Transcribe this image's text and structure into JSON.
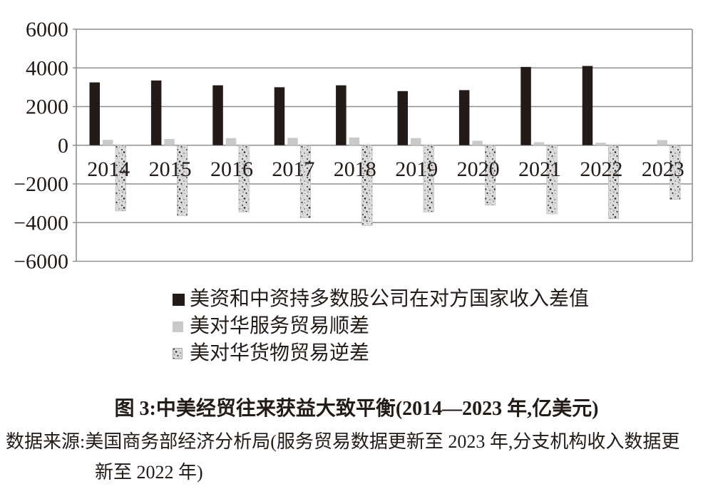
{
  "chart_data": {
    "type": "bar",
    "title": "图 3:中美经贸往来获益大致平衡(2014—2023 年,亿美元)",
    "unit": "亿美元",
    "categories": [
      "2014",
      "2015",
      "2016",
      "2017",
      "2018",
      "2019",
      "2020",
      "2021",
      "2022",
      "2023"
    ],
    "series": [
      {
        "name": "美资和中资持多数股公司在对方国家收入差值",
        "short": "income-diff",
        "color": "#241a17",
        "pattern": "solid",
        "values": [
          3250,
          3350,
          3100,
          3000,
          3100,
          2800,
          2850,
          4050,
          4100,
          null
        ]
      },
      {
        "name": "美对华服务贸易顺差",
        "short": "services-surplus",
        "color": "#c9c9c9",
        "pattern": "solid",
        "values": [
          280,
          320,
          370,
          380,
          400,
          370,
          230,
          160,
          130,
          270
        ]
      },
      {
        "name": "美对华货物贸易逆差",
        "short": "goods-deficit",
        "color": "#dcdcdc",
        "pattern": "speckled",
        "values": [
          -3400,
          -3650,
          -3450,
          -3750,
          -4150,
          -3450,
          -3100,
          -3550,
          -3800,
          -2800
        ]
      }
    ],
    "ylim": [
      -6000,
      6000
    ],
    "ytick_step": 2000,
    "yticks": [
      "6000",
      "4000",
      "2000",
      "0",
      "−2000",
      "−4000",
      "−6000"
    ],
    "grid": true,
    "legend_position": "bottom-left",
    "colors": {
      "grid": "#8f8f8f",
      "text": "#231b18",
      "bar_black": "#241a17",
      "bar_gray": "#c9c9c9",
      "bar_speckle_base": "#dcdcdc"
    }
  },
  "figure": {
    "caption": "图 3:中美经贸往来获益大致平衡(2014—2023 年,亿美元)",
    "source_line1": "数据来源:美国商务部经济分析局(服务贸易数据更新至 2023 年,分支机构收入数据更",
    "source_line2": "新至 2022 年)"
  }
}
